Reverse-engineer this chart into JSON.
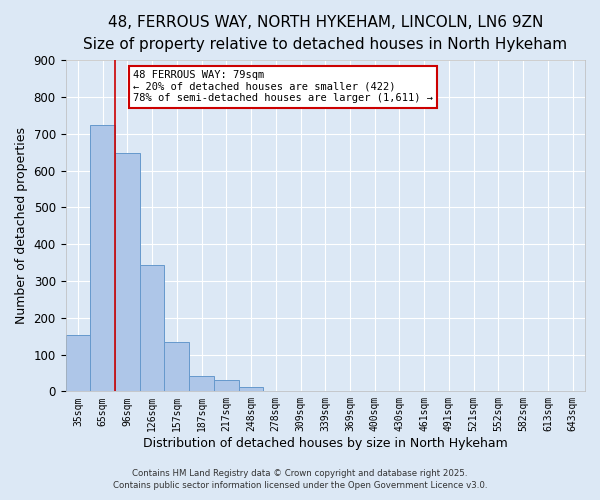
{
  "title": "48, FERROUS WAY, NORTH HYKEHAM, LINCOLN, LN6 9ZN",
  "subtitle": "Size of property relative to detached houses in North Hykeham",
  "xlabel": "Distribution of detached houses by size in North Hykeham",
  "ylabel": "Number of detached properties",
  "bar_labels": [
    "35sqm",
    "65sqm",
    "96sqm",
    "126sqm",
    "157sqm",
    "187sqm",
    "217sqm",
    "248sqm",
    "278sqm",
    "309sqm",
    "339sqm",
    "369sqm",
    "400sqm",
    "430sqm",
    "461sqm",
    "491sqm",
    "521sqm",
    "552sqm",
    "582sqm",
    "613sqm",
    "643sqm"
  ],
  "bar_values": [
    152,
    725,
    648,
    343,
    133,
    42,
    30,
    13,
    0,
    0,
    0,
    0,
    0,
    0,
    0,
    0,
    0,
    0,
    0,
    0,
    0
  ],
  "bar_color": "#aec6e8",
  "bar_edge_color": "#6699cc",
  "vline_x_bar_index": 1,
  "vline_color": "#cc0000",
  "ylim": [
    0,
    900
  ],
  "yticks": [
    0,
    100,
    200,
    300,
    400,
    500,
    600,
    700,
    800,
    900
  ],
  "annotation_title": "48 FERROUS WAY: 79sqm",
  "annotation_line1": "← 20% of detached houses are smaller (422)",
  "annotation_line2": "78% of semi-detached houses are larger (1,611) →",
  "annotation_box_color": "#cc0000",
  "footer1": "Contains HM Land Registry data © Crown copyright and database right 2025.",
  "footer2": "Contains public sector information licensed under the Open Government Licence v3.0.",
  "background_color": "#dce8f5",
  "grid_color": "#ffffff",
  "title_fontsize": 11,
  "subtitle_fontsize": 9.5,
  "xlabel_fontsize": 9,
  "ylabel_fontsize": 9
}
